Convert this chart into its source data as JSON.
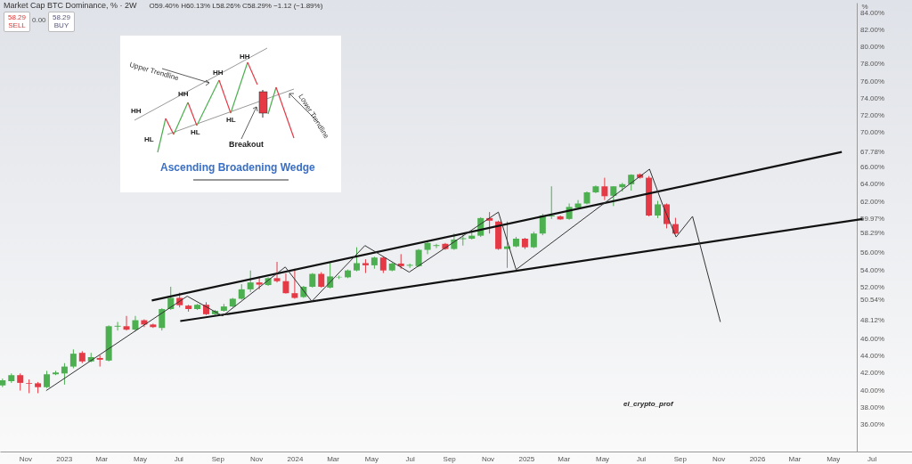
{
  "chart_data": {
    "type": "candlestick",
    "title": "Market Cap BTC Dominance, % · 2W",
    "subtitle": "O59.40% H60.13% L58.26% C58.29% −1.12 (−1.89%)",
    "ylabel": "%",
    "x": [
      "2022-09-26",
      "2022-10-10",
      "2022-10-24",
      "2022-11-07",
      "2022-11-21",
      "2022-12-05",
      "2022-12-19",
      "2023-01-02",
      "2023-01-16",
      "2023-01-30",
      "2023-02-13",
      "2023-02-27",
      "2023-03-13",
      "2023-03-27",
      "2023-04-10",
      "2023-04-24",
      "2023-05-08",
      "2023-05-22",
      "2023-06-05",
      "2023-06-19",
      "2023-07-03",
      "2023-07-17",
      "2023-07-31",
      "2023-08-14",
      "2023-08-28",
      "2023-09-11",
      "2023-09-25",
      "2023-10-09",
      "2023-10-23",
      "2023-11-06",
      "2023-11-20",
      "2023-12-04",
      "2023-12-18",
      "2024-01-01",
      "2024-01-15",
      "2024-01-29",
      "2024-02-12",
      "2024-02-26",
      "2024-03-11",
      "2024-03-25",
      "2024-04-08",
      "2024-04-22",
      "2024-05-06",
      "2024-05-20",
      "2024-06-03",
      "2024-06-17",
      "2024-07-01",
      "2024-07-15",
      "2024-07-29",
      "2024-08-12",
      "2024-08-26",
      "2024-09-09",
      "2024-09-23",
      "2024-10-07",
      "2024-10-21",
      "2024-11-04",
      "2024-11-18",
      "2024-12-02",
      "2024-12-16",
      "2024-12-30",
      "2025-01-13",
      "2025-01-27",
      "2025-02-10",
      "2025-02-24",
      "2025-03-10",
      "2025-03-24",
      "2025-04-07",
      "2025-04-21",
      "2025-05-05",
      "2025-05-19",
      "2025-06-02",
      "2025-06-16",
      "2025-06-30",
      "2025-07-14",
      "2025-07-28",
      "2025-08-11",
      "2025-08-25"
    ],
    "ohlc": [
      [
        40.6,
        41.4,
        40.4,
        41.2
      ],
      [
        41.1,
        42.0,
        40.9,
        41.8
      ],
      [
        41.8,
        42.0,
        40.0,
        40.9
      ],
      [
        40.9,
        41.3,
        39.7,
        40.8
      ],
      [
        40.85,
        41.0,
        39.7,
        40.4
      ],
      [
        40.4,
        42.3,
        40.3,
        41.9
      ],
      [
        41.9,
        42.3,
        41.8,
        42.1
      ],
      [
        42.0,
        43.2,
        40.7,
        42.8
      ],
      [
        42.8,
        44.8,
        42.6,
        44.3
      ],
      [
        44.4,
        44.6,
        43.2,
        43.4
      ],
      [
        43.4,
        44.4,
        43.3,
        43.9
      ],
      [
        43.8,
        44.1,
        42.8,
        43.6
      ],
      [
        43.5,
        47.6,
        43.4,
        47.5
      ],
      [
        47.45,
        48.0,
        47.0,
        47.55
      ],
      [
        47.5,
        48.7,
        47.0,
        47.1
      ],
      [
        47.1,
        48.7,
        46.9,
        48.2
      ],
      [
        48.2,
        48.3,
        47.4,
        47.7
      ],
      [
        47.7,
        47.8,
        47.3,
        47.4
      ],
      [
        47.3,
        49.6,
        47.0,
        49.5
      ],
      [
        49.5,
        52.1,
        49.4,
        50.8
      ],
      [
        50.8,
        51.4,
        49.7,
        49.95
      ],
      [
        49.9,
        50.0,
        49.2,
        49.5
      ],
      [
        49.5,
        50.1,
        49.4,
        50.0
      ],
      [
        50.0,
        50.3,
        48.8,
        48.9
      ],
      [
        48.9,
        49.4,
        48.8,
        49.3
      ],
      [
        49.3,
        50.1,
        49.2,
        49.8
      ],
      [
        49.8,
        50.8,
        49.7,
        50.7
      ],
      [
        50.7,
        52.4,
        50.6,
        51.8
      ],
      [
        51.8,
        54.0,
        51.5,
        52.6
      ],
      [
        52.6,
        53.3,
        51.8,
        52.35
      ],
      [
        52.3,
        53.2,
        52.2,
        53.1
      ],
      [
        53.1,
        55.0,
        52.6,
        52.75
      ],
      [
        52.75,
        53.65,
        51.3,
        51.35
      ],
      [
        51.35,
        54.2,
        50.7,
        50.8
      ],
      [
        50.9,
        52.2,
        50.8,
        52.1
      ],
      [
        52.1,
        53.7,
        52.0,
        53.6
      ],
      [
        53.6,
        53.8,
        52.0,
        52.1
      ],
      [
        52.0,
        54.9,
        51.9,
        53.3
      ],
      [
        53.2,
        53.4,
        53.0,
        53.25
      ],
      [
        53.2,
        54.1,
        53.1,
        54.0
      ],
      [
        54.0,
        56.7,
        53.9,
        54.85
      ],
      [
        54.85,
        55.3,
        53.7,
        54.6
      ],
      [
        54.6,
        55.6,
        54.2,
        55.5
      ],
      [
        55.5,
        55.6,
        53.7,
        54.0
      ],
      [
        54.0,
        54.9,
        53.9,
        54.8
      ],
      [
        54.8,
        55.9,
        54.2,
        54.5
      ],
      [
        54.55,
        54.8,
        54.3,
        54.65
      ],
      [
        54.5,
        56.5,
        54.4,
        56.4
      ],
      [
        56.4,
        57.3,
        55.9,
        57.2
      ],
      [
        56.85,
        57.1,
        56.6,
        56.95
      ],
      [
        57.1,
        57.2,
        56.4,
        56.5
      ],
      [
        56.5,
        58.3,
        56.4,
        57.6
      ],
      [
        57.65,
        58.2,
        56.9,
        57.75
      ],
      [
        57.7,
        58.6,
        57.6,
        58.05
      ],
      [
        58.05,
        60.2,
        57.9,
        60.1
      ],
      [
        60.1,
        60.8,
        58.3,
        59.8
      ],
      [
        59.7,
        59.8,
        56.4,
        56.5
      ],
      [
        56.5,
        59.7,
        54.3,
        56.8
      ],
      [
        56.8,
        57.9,
        56.7,
        57.7
      ],
      [
        57.7,
        57.8,
        56.5,
        56.7
      ],
      [
        56.7,
        58.5,
        56.6,
        58.3
      ],
      [
        58.3,
        60.6,
        58.1,
        60.4
      ],
      [
        60.3,
        63.8,
        60.0,
        60.4
      ],
      [
        60.3,
        60.4,
        59.9,
        59.95
      ],
      [
        60.0,
        61.8,
        59.9,
        61.4
      ],
      [
        61.3,
        62.2,
        61.2,
        61.8
      ],
      [
        61.8,
        63.2,
        61.7,
        63.1
      ],
      [
        63.1,
        63.9,
        63.0,
        63.8
      ],
      [
        63.8,
        64.8,
        62.2,
        62.65
      ],
      [
        62.7,
        63.8,
        61.5,
        63.8
      ],
      [
        63.7,
        64.2,
        63.2,
        64.05
      ],
      [
        64.05,
        65.2,
        63.3,
        65.15
      ],
      [
        65.2,
        65.3,
        64.7,
        64.8
      ],
      [
        64.8,
        65.0,
        60.3,
        60.4
      ],
      [
        60.4,
        62.1,
        60.1,
        61.7
      ],
      [
        61.7,
        61.8,
        58.9,
        59.41
      ],
      [
        59.4,
        60.13,
        58.26,
        58.29
      ]
    ],
    "colors": [
      "#4caf50",
      "#4caf50",
      "#e63946",
      "#e63946",
      "#e63946",
      "#4caf50",
      "#4caf50",
      "#4caf50",
      "#4caf50",
      "#e63946",
      "#4caf50",
      "#e63946",
      "#4caf50",
      "#4caf50",
      "#e63946",
      "#4caf50",
      "#e63946",
      "#e63946",
      "#4caf50",
      "#4caf50",
      "#e63946",
      "#e63946",
      "#4caf50",
      "#e63946",
      "#4caf50",
      "#4caf50",
      "#4caf50",
      "#4caf50",
      "#4caf50",
      "#e63946",
      "#4caf50",
      "#e63946",
      "#e63946",
      "#e63946",
      "#4caf50",
      "#4caf50",
      "#e63946",
      "#4caf50",
      "#4caf50",
      "#4caf50",
      "#4caf50",
      "#e63946",
      "#4caf50",
      "#e63946",
      "#4caf50",
      "#e63946",
      "#4caf50",
      "#4caf50",
      "#4caf50",
      "#4caf50",
      "#e63946",
      "#4caf50",
      "#4caf50",
      "#4caf50",
      "#4caf50",
      "#e63946",
      "#e63946",
      "#4caf50",
      "#4caf50",
      "#e63946",
      "#4caf50",
      "#4caf50",
      "#4caf50",
      "#e63946",
      "#4caf50",
      "#4caf50",
      "#4caf50",
      "#4caf50",
      "#e63946",
      "#4caf50",
      "#4caf50",
      "#4caf50",
      "#e63946",
      "#e63946",
      "#4caf50",
      "#e63946",
      "#e63946"
    ],
    "series": [
      {
        "type": "line",
        "color": "#111111",
        "x": [
          "2023-05-20",
          "2026-05-15"
        ],
        "values": [
          50.5,
          67.8
        ]
      },
      {
        "type": "line",
        "color": "#111111",
        "x": [
          "2023-07-04",
          "2026-06-17"
        ],
        "values": [
          48.1,
          60.0
        ]
      },
      {
        "type": "line",
        "color": "#333333",
        "x": [
          "2022-12-04",
          "2023-07-15",
          "2023-09-09",
          "2023-12-17",
          "2024-01-28",
          "2024-04-21",
          "2024-06-30",
          "2024-11-18",
          "2024-12-16",
          "2025-07-15",
          "2025-08-05",
          "2025-08-26",
          "2025-09-21",
          "2025-11-04"
        ],
        "values": [
          40.0,
          51.0,
          48.7,
          54.4,
          50.4,
          56.9,
          53.8,
          60.8,
          54.1,
          65.8,
          61.6,
          57.9,
          60.3,
          48.0
        ]
      }
    ],
    "xlim": [
      "2022-09-22",
      "2026-09-03"
    ],
    "xticks": [
      {
        "value": "2022-11-01",
        "label": "Nov"
      },
      {
        "value": "2023-01-01",
        "label": "2023"
      },
      {
        "value": "2023-03-01",
        "label": "Mar"
      },
      {
        "value": "2023-05-01",
        "label": "May"
      },
      {
        "value": "2023-07-01",
        "label": "Jul"
      },
      {
        "value": "2023-09-01",
        "label": "Sep"
      },
      {
        "value": "2023-11-01",
        "label": "Nov"
      },
      {
        "value": "2024-01-01",
        "label": "2024"
      },
      {
        "value": "2024-03-01",
        "label": "Mar"
      },
      {
        "value": "2024-05-01",
        "label": "May"
      },
      {
        "value": "2024-07-01",
        "label": "Jul"
      },
      {
        "value": "2024-09-01",
        "label": "Sep"
      },
      {
        "value": "2024-11-01",
        "label": "Nov"
      },
      {
        "value": "2025-01-01",
        "label": "2025"
      },
      {
        "value": "2025-03-01",
        "label": "Mar"
      },
      {
        "value": "2025-05-01",
        "label": "May"
      },
      {
        "value": "2025-07-01",
        "label": "Jul"
      },
      {
        "value": "2025-09-01",
        "label": "Sep"
      },
      {
        "value": "2025-11-01",
        "label": "Nov"
      },
      {
        "value": "2026-01-01",
        "label": "2026"
      },
      {
        "value": "2026-03-01",
        "label": "Mar"
      },
      {
        "value": "2026-05-01",
        "label": "May"
      },
      {
        "value": "2026-07-01",
        "label": "Jul"
      }
    ],
    "ylim": [
      32.9,
      85.2
    ],
    "yticks": [
      {
        "value": 36,
        "label": "36.00%"
      },
      {
        "value": 38,
        "label": "38.00%"
      },
      {
        "value": 40,
        "label": "40.00%"
      },
      {
        "value": 42,
        "label": "42.00%"
      },
      {
        "value": 44,
        "label": "44.00%"
      },
      {
        "value": 46,
        "label": "46.00%"
      },
      {
        "value": 48.12,
        "label": "48.12%"
      },
      {
        "value": 50.54,
        "label": "50.54%"
      },
      {
        "value": 52,
        "label": "52.00%"
      },
      {
        "value": 54,
        "label": "54.00%"
      },
      {
        "value": 56,
        "label": "56.00%"
      },
      {
        "value": 58.29,
        "label": "58.29%"
      },
      {
        "value": 59.97,
        "label": "59.97%"
      },
      {
        "value": 62,
        "label": "62.00%"
      },
      {
        "value": 64,
        "label": "64.00%"
      },
      {
        "value": 66,
        "label": "66.00%"
      },
      {
        "value": 67.78,
        "label": "67.78%"
      },
      {
        "value": 70,
        "label": "70.00%"
      },
      {
        "value": 72,
        "label": "72.00%"
      },
      {
        "value": 74,
        "label": "74.00%"
      },
      {
        "value": 76,
        "label": "76.00%"
      },
      {
        "value": 78,
        "label": "78.00%"
      },
      {
        "value": 80,
        "label": "80.00%"
      },
      {
        "value": 82,
        "label": "82.00%"
      },
      {
        "value": 84,
        "label": "84.00%"
      }
    ],
    "annotations": [
      "58.29",
      "SELL",
      "0.00",
      "58.29",
      "BUY",
      "Ascending Broadening Wedge",
      "Upper Trendline",
      "Lower Trendline",
      "HH",
      "HH",
      "HH",
      "HH",
      "HL",
      "HL",
      "HL",
      "Breakout",
      "el_crypto_prof"
    ]
  }
}
